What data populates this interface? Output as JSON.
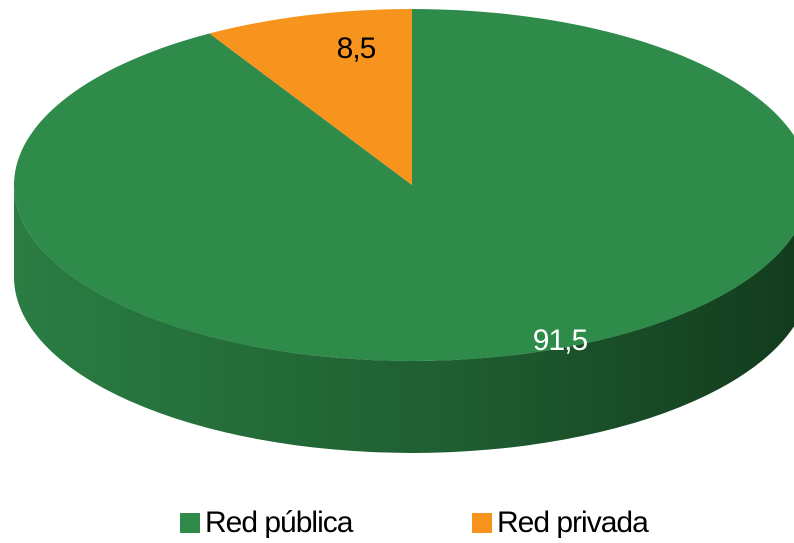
{
  "chart_data": {
    "type": "pie",
    "title": "",
    "categories": [
      "Red pública",
      "Red privada"
    ],
    "values": [
      91.5,
      8.5
    ],
    "data_labels": [
      "91,5",
      "8,5"
    ],
    "colors": [
      "#2e8b4a",
      "#f7941d"
    ],
    "style": "3d",
    "legend_position": "bottom"
  },
  "legend": {
    "items": [
      {
        "label": "Red pública",
        "color": "#2e8b4a"
      },
      {
        "label": "Red privada",
        "color": "#f7941d"
      }
    ]
  }
}
